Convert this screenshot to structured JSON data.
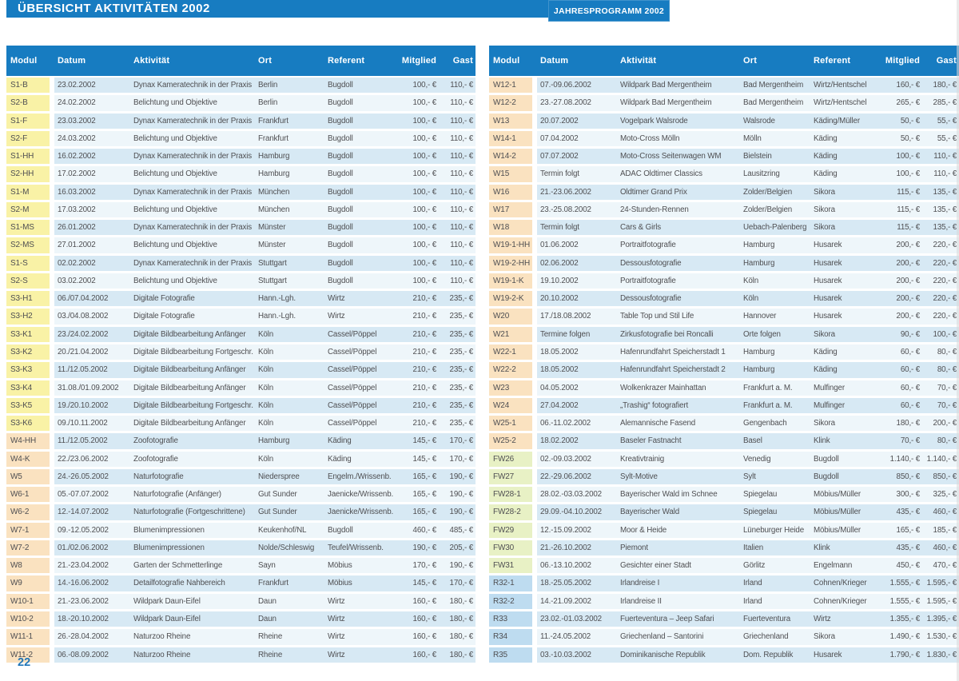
{
  "header": {
    "title": "ÜBERSICHT AKTIVITÄTEN 2002",
    "program_label": "JAHRESPROGRAMM 2002"
  },
  "columns": [
    "Modul",
    "Datum",
    "Aktivität",
    "Ort",
    "Referent",
    "Mitglied",
    "Gast"
  ],
  "tables": {
    "left": {
      "rows": [
        [
          "S1-B",
          "23.02.2002",
          "Dynax Kameratechnik in der Praxis",
          "Berlin",
          "Bugdoll",
          "100,- €",
          "110,- €"
        ],
        [
          "S2-B",
          "24.02.2002",
          "Belichtung und Objektive",
          "Berlin",
          "Bugdoll",
          "100,- €",
          "110,- €"
        ],
        [
          "S1-F",
          "23.03.2002",
          "Dynax Kameratechnik in der Praxis",
          "Frankfurt",
          "Bugdoll",
          "100,- €",
          "110,- €"
        ],
        [
          "S2-F",
          "24.03.2002",
          "Belichtung und Objektive",
          "Frankfurt",
          "Bugdoll",
          "100,- €",
          "110,- €"
        ],
        [
          "S1-HH",
          "16.02.2002",
          "Dynax Kameratechnik in der Praxis",
          "Hamburg",
          "Bugdoll",
          "100,- €",
          "110,- €"
        ],
        [
          "S2-HH",
          "17.02.2002",
          "Belichtung und Objektive",
          "Hamburg",
          "Bugdoll",
          "100,- €",
          "110,- €"
        ],
        [
          "S1-M",
          "16.03.2002",
          "Dynax Kameratechnik in der Praxis",
          "München",
          "Bugdoll",
          "100,- €",
          "110,- €"
        ],
        [
          "S2-M",
          "17.03.2002",
          "Belichtung und Objektive",
          "München",
          "Bugdoll",
          "100,- €",
          "110,- €"
        ],
        [
          "S1-MS",
          "26.01.2002",
          "Dynax Kameratechnik in der Praxis",
          "Münster",
          "Bugdoll",
          "100,- €",
          "110,- €"
        ],
        [
          "S2-MS",
          "27.01.2002",
          "Belichtung und Objektive",
          "Münster",
          "Bugdoll",
          "100,- €",
          "110,- €"
        ],
        [
          "S1-S",
          "02.02.2002",
          "Dynax Kameratechnik in der Praxis",
          "Stuttgart",
          "Bugdoll",
          "100,- €",
          "110,- €"
        ],
        [
          "S2-S",
          "03.02.2002",
          "Belichtung und Objektive",
          "Stuttgart",
          "Bugdoll",
          "100,- €",
          "110,- €"
        ],
        [
          "S3-H1",
          "06./07.04.2002",
          "Digitale Fotografie",
          "Hann.-Lgh.",
          "Wirtz",
          "210,- €",
          "235,- €"
        ],
        [
          "S3-H2",
          "03./04.08.2002",
          "Digitale Fotografie",
          "Hann.-Lgh.",
          "Wirtz",
          "210,- €",
          "235,- €"
        ],
        [
          "S3-K1",
          "23./24.02.2002",
          "Digitale Bildbearbeitung Anfänger",
          "Köln",
          "Cassel/Pöppel",
          "210,- €",
          "235,- €"
        ],
        [
          "S3-K2",
          "20./21.04.2002",
          "Digitale Bildbearbeitung Fortgeschr.",
          "Köln",
          "Cassel/Pöppel",
          "210,- €",
          "235,- €"
        ],
        [
          "S3-K3",
          "11./12.05.2002",
          "Digitale Bildbearbeitung Anfänger",
          "Köln",
          "Cassel/Pöppel",
          "210,- €",
          "235,- €"
        ],
        [
          "S3-K4",
          "31.08./01.09.2002",
          "Digitale Bildbearbeitung Anfänger",
          "Köln",
          "Cassel/Pöppel",
          "210,- €",
          "235,- €"
        ],
        [
          "S3-K5",
          "19./20.10.2002",
          "Digitale Bildbearbeitung Fortgeschr.",
          "Köln",
          "Cassel/Pöppel",
          "210,- €",
          "235,- €"
        ],
        [
          "S3-K6",
          "09./10.11.2002",
          "Digitale Bildbearbeitung Anfänger",
          "Köln",
          "Cassel/Pöppel",
          "210,- €",
          "235,- €"
        ],
        [
          "W4-HH",
          "11./12.05.2002",
          "Zoofotografie",
          "Hamburg",
          "Käding",
          "145,- €",
          "170,- €"
        ],
        [
          "W4-K",
          "22./23.06.2002",
          "Zoofotografie",
          "Köln",
          "Käding",
          "145,- €",
          "170,- €"
        ],
        [
          "W5",
          "24.-26.05.2002",
          "Naturfotografie",
          "Niederspree",
          "Engelm./Wrissenb.",
          "165,- €",
          "190,- €"
        ],
        [
          "W6-1",
          "05.-07.07.2002",
          "Naturfotografie (Anfänger)",
          "Gut Sunder",
          "Jaenicke/Wrissenb.",
          "165,- €",
          "190,- €"
        ],
        [
          "W6-2",
          "12.-14.07.2002",
          "Naturfotografie (Fortgeschrittene)",
          "Gut Sunder",
          "Jaenicke/Wrissenb.",
          "165,- €",
          "190,- €"
        ],
        [
          "W7-1",
          "09.-12.05.2002",
          "Blumenimpressionen",
          "Keukenhof/NL",
          "Bugdoll",
          "460,- €",
          "485,- €"
        ],
        [
          "W7-2",
          "01./02.06.2002",
          "Blumenimpressionen",
          "Nolde/Schleswig",
          "Teufel/Wrissenb.",
          "190,- €",
          "205,- €"
        ],
        [
          "W8",
          "21.-23.04.2002",
          "Garten der Schmetterlinge",
          "Sayn",
          "Möbius",
          "170,- €",
          "190,- €"
        ],
        [
          "W9",
          "14.-16.06.2002",
          "Detailfotografie Nahbereich",
          "Frankfurt",
          "Möbius",
          "145,- €",
          "170,- €"
        ],
        [
          "W10-1",
          "21.-23.06.2002",
          "Wildpark Daun-Eifel",
          "Daun",
          "Wirtz",
          "160,- €",
          "180,- €"
        ],
        [
          "W10-2",
          "18.-20.10.2002",
          "Wildpark Daun-Eifel",
          "Daun",
          "Wirtz",
          "160,- €",
          "180,- €"
        ],
        [
          "W11-1",
          "26.-28.04.2002",
          "Naturzoo Rheine",
          "Rheine",
          "Wirtz",
          "160,- €",
          "180,- €"
        ],
        [
          "W11-2",
          "06.-08.09.2002",
          "Naturzoo Rheine",
          "Rheine",
          "Wirtz",
          "160,- €",
          "180,- €"
        ]
      ]
    },
    "right": {
      "rows": [
        [
          "W12-1",
          "07.-09.06.2002",
          "Wildpark Bad Mergentheim",
          "Bad Mergentheim",
          "Wirtz/Hentschel",
          "160,- €",
          "180,- €"
        ],
        [
          "W12-2",
          "23.-27.08.2002",
          "Wildpark Bad Mergentheim",
          "Bad Mergentheim",
          "Wirtz/Hentschel",
          "265,- €",
          "285,- €"
        ],
        [
          "W13",
          "20.07.2002",
          "Vogelpark Walsrode",
          "Walsrode",
          "Käding/Müller",
          "50,- €",
          "55,- €"
        ],
        [
          "W14-1",
          "07.04.2002",
          "Moto-Cross Mölln",
          "Mölln",
          "Käding",
          "50,- €",
          "55,- €"
        ],
        [
          "W14-2",
          "07.07.2002",
          "Moto-Cross Seitenwagen WM",
          "Bielstein",
          "Käding",
          "100,- €",
          "110,- €"
        ],
        [
          "W15",
          "Termin folgt",
          "ADAC Oldtimer Classics",
          "Lausitzring",
          "Käding",
          "100,- €",
          "110,- €"
        ],
        [
          "W16",
          "21.-23.06.2002",
          "Oldtimer Grand Prix",
          "Zolder/Belgien",
          "Sikora",
          "115,- €",
          "135,- €"
        ],
        [
          "W17",
          "23.-25.08.2002",
          "24-Stunden-Rennen",
          "Zolder/Belgien",
          "Sikora",
          "115,- €",
          "135,- €"
        ],
        [
          "W18",
          "Termin folgt",
          "Cars & Girls",
          "Uebach-Palenberg",
          "Sikora",
          "115,- €",
          "135,- €"
        ],
        [
          "W19-1-HH",
          "01.06.2002",
          "Portraitfotografie",
          "Hamburg",
          "Husarek",
          "200,- €",
          "220,- €"
        ],
        [
          "W19-2-HH",
          "02.06.2002",
          "Dessousfotografie",
          "Hamburg",
          "Husarek",
          "200,- €",
          "220,- €"
        ],
        [
          "W19-1-K",
          "19.10.2002",
          "Portraitfotografie",
          "Köln",
          "Husarek",
          "200,- €",
          "220,- €"
        ],
        [
          "W19-2-K",
          "20.10.2002",
          "Dessousfotografie",
          "Köln",
          "Husarek",
          "200,- €",
          "220,- €"
        ],
        [
          "W20",
          "17./18.08.2002",
          "Table Top und Stil Life",
          "Hannover",
          "Husarek",
          "200,- €",
          "220,- €"
        ],
        [
          "W21",
          "Termine folgen",
          "Zirkusfotografie bei Roncalli",
          "Orte folgen",
          "Sikora",
          "90,- €",
          "100,- €"
        ],
        [
          "W22-1",
          "18.05.2002",
          "Hafenrundfahrt Speicherstadt 1",
          "Hamburg",
          "Käding",
          "60,- €",
          "80,- €"
        ],
        [
          "W22-2",
          "18.05.2002",
          "Hafenrundfahrt Speicherstadt 2",
          "Hamburg",
          "Käding",
          "60,- €",
          "80,- €"
        ],
        [
          "W23",
          "04.05.2002",
          "Wolkenkrazer Mainhattan",
          "Frankfurt a. M.",
          "Mulfinger",
          "60,- €",
          "70,- €"
        ],
        [
          "W24",
          "27.04.2002",
          "„Trashig“ fotografiert",
          "Frankfurt a. M.",
          "Mulfinger",
          "60,- €",
          "70,- €"
        ],
        [
          "W25-1",
          "06.-11.02.2002",
          "Alemannische Fasend",
          "Gengenbach",
          "Sikora",
          "180,- €",
          "200,- €"
        ],
        [
          "W25-2",
          "18.02.2002",
          "Baseler Fastnacht",
          "Basel",
          "Klink",
          "70,- €",
          "80,- €"
        ],
        [
          "FW26",
          "02.-09.03.2002",
          "Kreativtrainig",
          "Venedig",
          "Bugdoll",
          "1.140,- €",
          "1.140,- €"
        ],
        [
          "FW27",
          "22.-29.06.2002",
          "Sylt-Motive",
          "Sylt",
          "Bugdoll",
          "850,- €",
          "850,- €"
        ],
        [
          "FW28-1",
          "28.02.-03.03.2002",
          "Bayerischer Wald im Schnee",
          "Spiegelau",
          "Möbius/Müller",
          "300,- €",
          "325,- €"
        ],
        [
          "FW28-2",
          "29.09.-04.10.2002",
          "Bayerischer Wald",
          "Spiegelau",
          "Möbius/Müller",
          "435,- €",
          "460,- €"
        ],
        [
          "FW29",
          "12.-15.09.2002",
          "Moor & Heide",
          "Lüneburger Heide",
          "Möbius/Müller",
          "165,- €",
          "185,- €"
        ],
        [
          "FW30",
          "21.-26.10.2002",
          "Piemont",
          "Italien",
          "Klink",
          "435,- €",
          "460,- €"
        ],
        [
          "FW31",
          "06.-13.10.2002",
          "Gesichter einer Stadt",
          "Görlitz",
          "Engelmann",
          "450,- €",
          "470,- €"
        ],
        [
          "R32-1",
          "18.-25.05.2002",
          "Irlandreise I",
          "Irland",
          "Cohnen/Krieger",
          "1.555,- €",
          "1.595,- €"
        ],
        [
          "R32-2",
          "14.-21.09.2002",
          "Irlandreise II",
          "Irland",
          "Cohnen/Krieger",
          "1.555,- €",
          "1.595,- €"
        ],
        [
          "R33",
          "23.02.-01.03.2002",
          "Fuerteventura – Jeep Safari",
          "Fuerteventura",
          "Wirtz",
          "1.355,- €",
          "1.395,- €"
        ],
        [
          "R34",
          "11.-24.05.2002",
          "Griechenland – Santorini",
          "Griechenland",
          "Sikora",
          "1.490,- €",
          "1.530,- €"
        ],
        [
          "R35",
          "03.-10.03.2002",
          "Dominikanische Republik",
          "Dom. Republik",
          "Husarek",
          "1.790,- €",
          "1.830,- €"
        ]
      ]
    }
  },
  "footer": {
    "page_number": "22"
  },
  "colors": {
    "header_blue": "#177cc1",
    "stripe_odd": "#d7e9f4",
    "stripe_even": "#eef6fa",
    "module_s": "#f9f2a6",
    "module_w": "#fae2c0",
    "module_fw": "#e8f1c5",
    "module_r": "#bedcf0",
    "text": "#4f4f52",
    "page_number_blue": "#2076b8"
  }
}
